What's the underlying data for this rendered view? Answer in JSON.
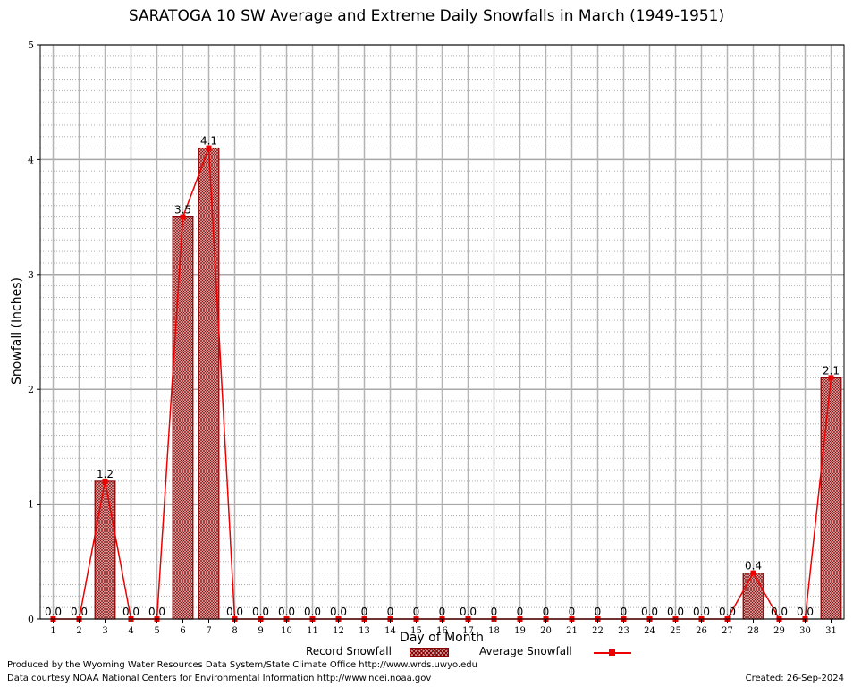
{
  "chart_data": {
    "type": "bar",
    "title": "SARATOGA 10 SW Average and Extreme Daily Snowfalls in March (1949-1951)",
    "xlabel": "Day of Month",
    "ylabel": "Snowfall (Inches)",
    "ylim": [
      0,
      5
    ],
    "yticks": [
      "0",
      "1",
      "2",
      "3",
      "4",
      "5"
    ],
    "grid": true,
    "categories": [
      "1",
      "2",
      "3",
      "4",
      "5",
      "6",
      "7",
      "8",
      "9",
      "10",
      "11",
      "12",
      "13",
      "14",
      "15",
      "16",
      "17",
      "18",
      "19",
      "20",
      "21",
      "22",
      "23",
      "24",
      "25",
      "26",
      "27",
      "28",
      "29",
      "30",
      "31"
    ],
    "series": [
      {
        "name": "Record Snowfall",
        "kind": "bar",
        "values": [
          0,
          0,
          1.2,
          0,
          0,
          3.5,
          4.1,
          0,
          0,
          0,
          0,
          0,
          0,
          0,
          0,
          0,
          0,
          0,
          0,
          0,
          0,
          0,
          0,
          0,
          0,
          0,
          0,
          0.4,
          0,
          0,
          2.1
        ],
        "labels": [
          "0.0",
          "0.0",
          "1.2",
          "0.0",
          "0.0",
          "3.5",
          "4.1",
          "0.0",
          "0.0",
          "0.0",
          "0.0",
          "0.0",
          "0",
          "0",
          "0",
          "0",
          "0.0",
          "0",
          "0",
          "0",
          "0",
          "0",
          "0",
          "0.0",
          "0.0",
          "0.0",
          "0.0",
          "0.4",
          "0.0",
          "0.0",
          "2.1"
        ],
        "color": "#8b0000"
      },
      {
        "name": "Average Snowfall",
        "kind": "line",
        "values": [
          0,
          0,
          1.2,
          0,
          0,
          3.5,
          4.1,
          0,
          0,
          0,
          0,
          0,
          0,
          0,
          0,
          0,
          0,
          0,
          0,
          0,
          0,
          0,
          0,
          0,
          0,
          0,
          0,
          0.4,
          0,
          0,
          2.1
        ],
        "color": "#ee0000"
      }
    ],
    "legend": "bottom"
  },
  "footer": {
    "produced_by": "Produced by the Wyoming Water Resources Data System/State Climate Office http://www.wrds.uwyo.edu",
    "data_courtesy": "Data courtesy NOAA National Centers for Environmental Information http://www.ncei.noaa.gov",
    "created": "Created:  26-Sep-2024"
  }
}
